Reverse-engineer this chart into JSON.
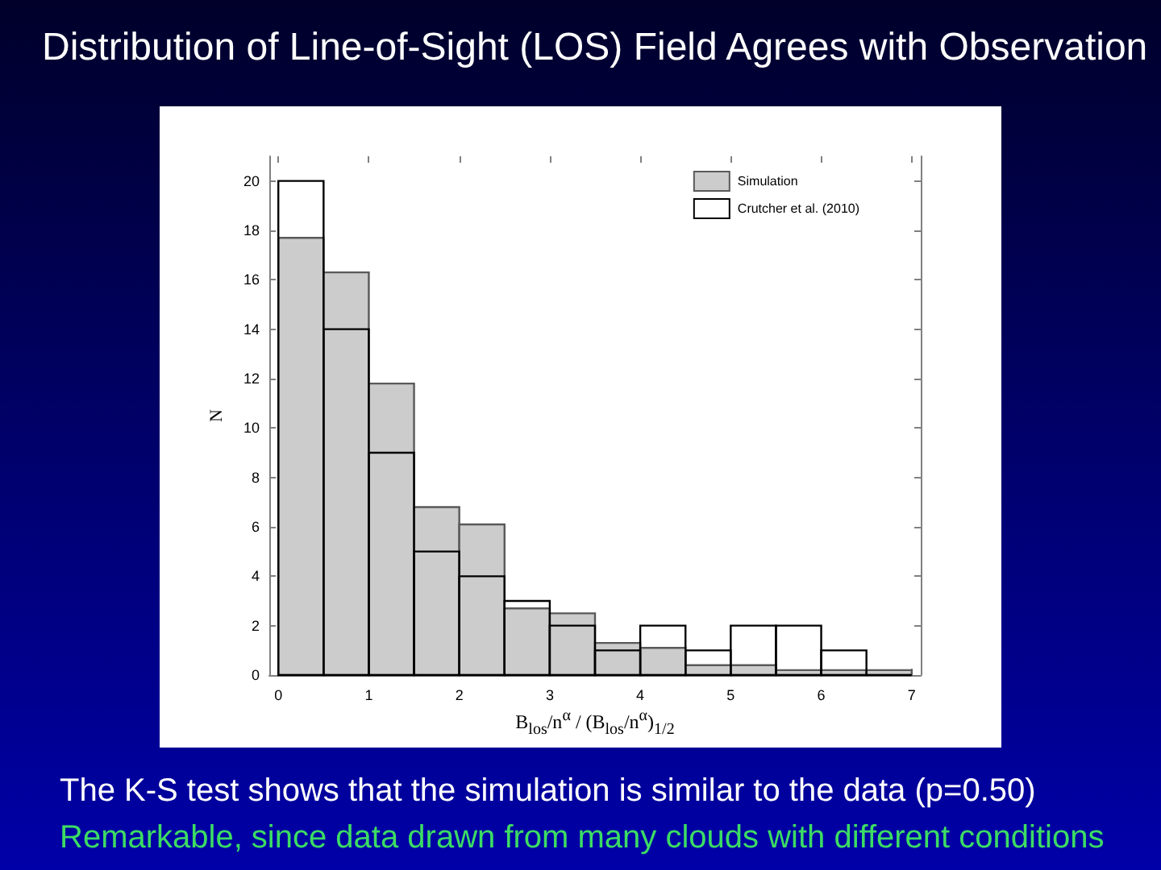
{
  "chart_data": {
    "type": "histogram",
    "title": "Distribution of Line-of-Sight (LOS) Field Agrees with Observation",
    "xlabel": "B$_{los}$/n$^{α}$ / (B$_{los}$/n$^{α}$)$_{1/2}$",
    "ylabel": "N",
    "bins": [
      0,
      0.5,
      1,
      1.5,
      2,
      2.5,
      3,
      3.5,
      4,
      4.5,
      5,
      5.5,
      6,
      6.5,
      7
    ],
    "series": [
      {
        "name": "Simulation",
        "color": "#cccccc",
        "values": [
          17.7,
          16.3,
          11.8,
          6.8,
          6.1,
          2.7,
          2.5,
          1.3,
          1.1,
          0.4,
          0.4,
          0.2,
          0.2,
          0.2
        ]
      },
      {
        "name": "Crutcher et al. (2010)",
        "color": "#000000",
        "values": [
          20,
          14,
          9,
          5,
          4,
          3,
          2,
          1,
          2,
          1,
          2,
          2,
          1,
          0
        ]
      }
    ],
    "xlim": [
      -0.1,
      7.1
    ],
    "ylim": [
      0,
      21
    ],
    "xticks": [
      0,
      1,
      2,
      3,
      4,
      5,
      6,
      7
    ],
    "yticks": [
      0,
      2,
      4,
      6,
      8,
      10,
      12,
      14,
      16,
      18,
      20
    ],
    "grid": false,
    "legend": "top right",
    "annotations": [
      "The K-S test shows that the simulation is similar to the data (p=0.50)",
      "Remarkable, since data drawn from many clouds with different conditions"
    ]
  }
}
